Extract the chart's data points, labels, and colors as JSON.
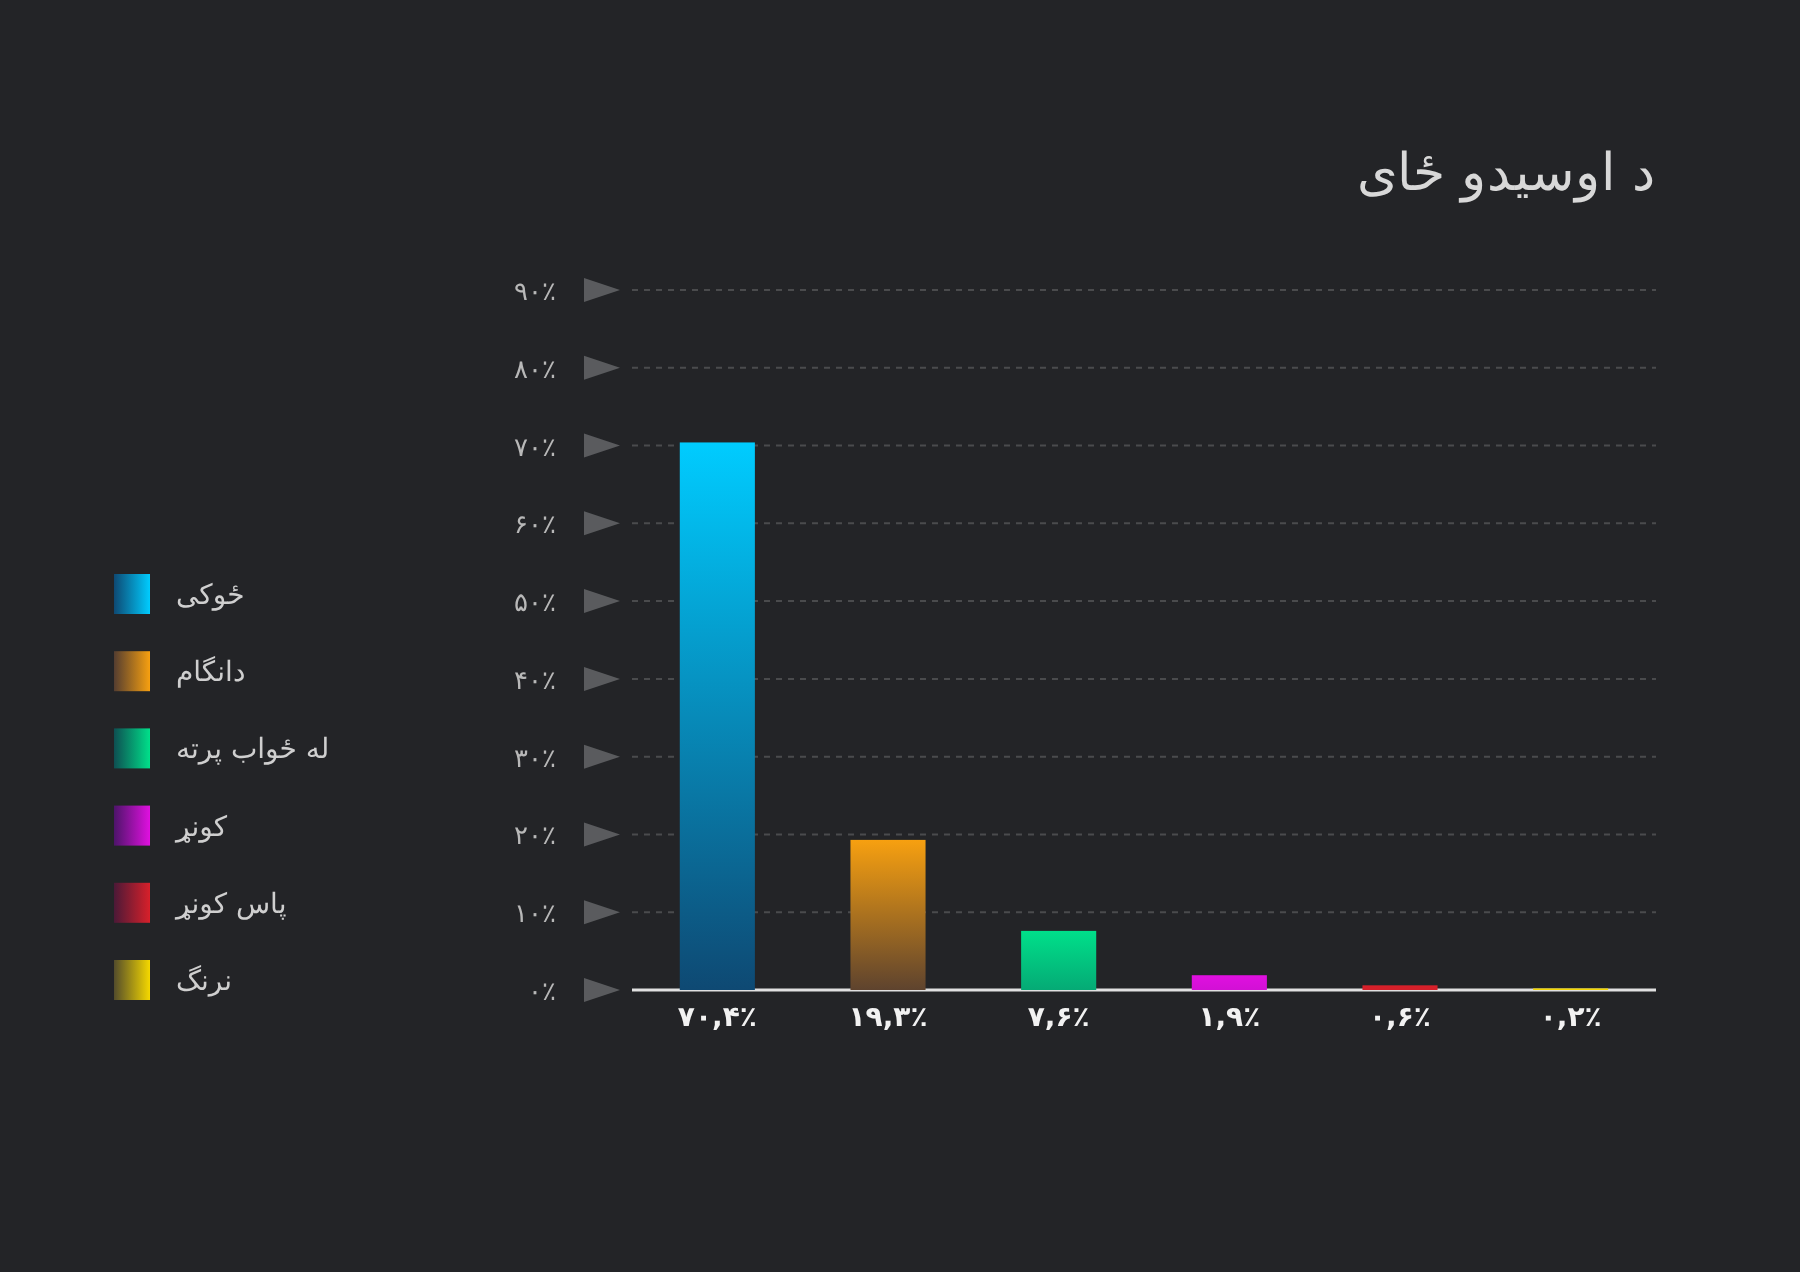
{
  "chart_data": {
    "type": "bar",
    "title": "د اوسیدو ځای",
    "stacked": true,
    "categories": [
      null,
      null,
      null,
      null,
      null,
      null
    ],
    "series": [
      {
        "name": "ځوکی",
        "color": "#00ccff",
        "values": [
          70.4,
          null,
          null,
          null,
          null,
          null
        ],
        "value_labels": [
          "۷۰,۴٪",
          null,
          null,
          null,
          null,
          null
        ]
      },
      {
        "name": "دانگام",
        "color": "#f7a010",
        "values": [
          null,
          19.3,
          null,
          null,
          null,
          null
        ],
        "value_labels": [
          null,
          "۱۹,۳٪",
          null,
          null,
          null,
          null
        ]
      },
      {
        "name": "له ځواب پرته",
        "color": "#00e08a",
        "values": [
          null,
          null,
          7.6,
          null,
          null,
          null
        ],
        "value_labels": [
          null,
          null,
          "۷,۶٪",
          null,
          null,
          null
        ]
      },
      {
        "name": "کونړ",
        "color": "#e010e0",
        "values": [
          null,
          null,
          null,
          1.9,
          null,
          null
        ],
        "value_labels": [
          null,
          null,
          null,
          "۱,۹٪",
          null,
          null
        ]
      },
      {
        "name": "پاس کونړ",
        "color": "#d8202a",
        "values": [
          null,
          null,
          null,
          null,
          0.6,
          null
        ],
        "value_labels": [
          null,
          null,
          null,
          null,
          "۰,۶٪",
          null
        ]
      },
      {
        "name": "نرنگ",
        "color": "#f5d800",
        "values": [
          null,
          null,
          null,
          null,
          null,
          0.2
        ],
        "value_labels": [
          null,
          null,
          null,
          null,
          null,
          "۰,۲٪"
        ]
      }
    ],
    "ylim": [
      0,
      90
    ],
    "yticks": [
      {
        "value": 0,
        "label": "۰٪"
      },
      {
        "value": 10,
        "label": "۱۰٪"
      },
      {
        "value": 20,
        "label": "۲۰٪"
      },
      {
        "value": 30,
        "label": "۳۰٪"
      },
      {
        "value": 40,
        "label": "۴۰٪"
      },
      {
        "value": 50,
        "label": "۵۰٪"
      },
      {
        "value": 60,
        "label": "۶۰٪"
      },
      {
        "value": 70,
        "label": "۷۰٪"
      },
      {
        "value": 80,
        "label": "۸۰٪"
      },
      {
        "value": 90,
        "label": "۹۰٪"
      }
    ],
    "grid": "y",
    "legend": "left"
  }
}
